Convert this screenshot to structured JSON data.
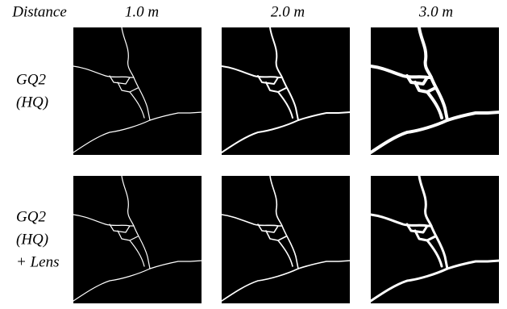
{
  "header": {
    "label": "Distance",
    "columns": [
      "1.0 m",
      "2.0 m",
      "3.0 m"
    ]
  },
  "rows": [
    {
      "label_lines": [
        "GQ2",
        "(HQ)"
      ]
    },
    {
      "label_lines": [
        "GQ2",
        "(HQ)",
        "+ Lens"
      ]
    }
  ]
}
